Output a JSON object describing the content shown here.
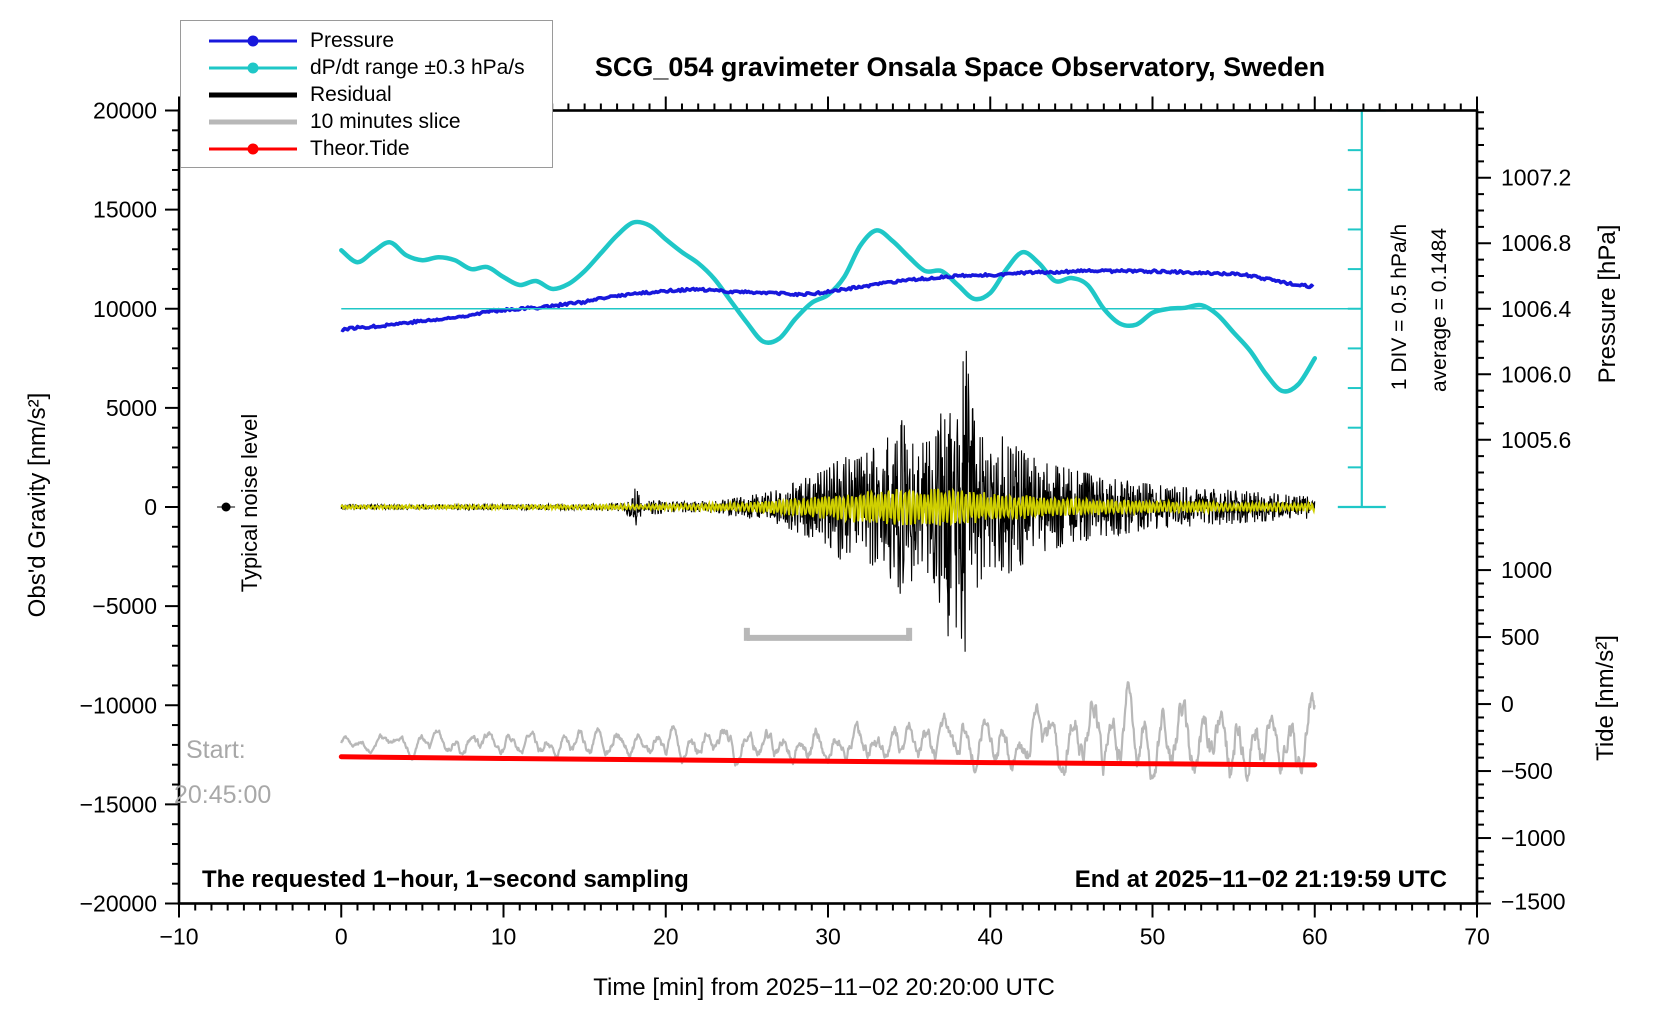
{
  "title": "SCG_054 gravimeter Onsala Space Observatory, Sweden",
  "colors": {
    "pressure": "#1818dc",
    "dpdt": "#1fc7c7",
    "residual": "#000000",
    "slice": "#b8b8b8",
    "tide": "#ff0000",
    "smoothed_residual": "#cfcf00",
    "gray_text": "#a8a8a8",
    "frame": "#000000"
  },
  "legend": {
    "items": [
      {
        "label": "Pressure",
        "color": "#1818dc",
        "marker": "dot",
        "thickness": 3
      },
      {
        "label": "dP/dt range ±0.3 hPa/s",
        "color": "#1fc7c7",
        "marker": "dot",
        "thickness": 3
      },
      {
        "label": "Residual",
        "color": "#000000",
        "marker": "none",
        "thickness": 5
      },
      {
        "label": "10 minutes slice",
        "color": "#b8b8b8",
        "marker": "none",
        "thickness": 5
      },
      {
        "label": "Theor.Tide",
        "color": "#ff0000",
        "marker": "dot",
        "thickness": 3
      }
    ]
  },
  "annotations": {
    "typical_noise": "Typical noise level",
    "start_line1": "Start:",
    "start_line2": "20:45:00",
    "div_label": "1 DIV = 0.5 hPa/h",
    "average_label": "average = 0.1484",
    "bottom_left": "The requested 1−hour, 1−second sampling",
    "bottom_right": "End at 2025−11−02 21:19:59 UTC"
  },
  "chart_data": {
    "type": "line",
    "title": "SCG_054 gravimeter Onsala Space Observatory, Sweden",
    "x_axis": {
      "label": "Time [min] from 2025−11−02 20:20:00 UTC",
      "lim": [
        -10,
        70
      ],
      "major_ticks": [
        -10,
        0,
        10,
        20,
        30,
        40,
        50,
        60,
        70
      ],
      "minor_step": 1
    },
    "left_axis": {
      "label": "Obs'd Gravity [nm/s²]",
      "lim": [
        -20000,
        20000
      ],
      "major_ticks": [
        -20000,
        -15000,
        -10000,
        -5000,
        0,
        5000,
        10000,
        15000,
        20000
      ],
      "minor_step": 1000
    },
    "right_pressure_axis": {
      "label": "Pressure [hPa]",
      "major_ticks": [
        1007.2,
        1006.8,
        1006.4,
        1006.0,
        1005.6
      ],
      "minor_step": 0.1,
      "anchor_value": 1006.4,
      "anchor_gravity": 10000,
      "gravity_per_hpa": 8260
    },
    "right_tide_axis": {
      "label": "Tide [nm/s²]",
      "major_ticks": [
        1000,
        500,
        0,
        -500,
        -1000,
        -1500
      ],
      "minor_step": 100,
      "anchor_value": 0,
      "anchor_gravity": -9940,
      "gravity_per_unit": 6.758
    },
    "overlays": {
      "average_line_gravity": 10000,
      "ruler": {
        "x_min": 62.9,
        "top_gravity": 20000,
        "bottom_gravity": 0,
        "divisions": 10
      },
      "scale_bar": {
        "x_from": 25,
        "x_to": 35,
        "gravity": -6600
      },
      "noise_marker": {
        "x_min": -7.1,
        "gravity": 0
      }
    },
    "series": {
      "pressure_hpa": {
        "x_start": 0,
        "x_step": 1,
        "values": [
          1006.273,
          1006.285,
          1006.291,
          1006.303,
          1006.315,
          1006.325,
          1006.333,
          1006.346,
          1006.364,
          1006.382,
          1006.394,
          1006.4,
          1006.406,
          1006.418,
          1006.43,
          1006.442,
          1006.461,
          1006.479,
          1006.491,
          1006.499,
          1006.509,
          1006.515,
          1006.517,
          1006.511,
          1006.505,
          1006.502,
          1006.499,
          1006.493,
          1006.487,
          1006.491,
          1006.503,
          1006.519,
          1006.533,
          1006.549,
          1006.562,
          1006.574,
          1006.584,
          1006.594,
          1006.6,
          1006.603,
          1006.606,
          1006.612,
          1006.618,
          1006.622,
          1006.625,
          1006.628,
          1006.63,
          1006.63,
          1006.631,
          1006.63,
          1006.629,
          1006.626,
          1006.624,
          1006.62,
          1006.616,
          1006.611,
          1006.603,
          1006.582,
          1006.563,
          1006.545,
          1006.533
        ]
      },
      "dpdt_gravity_units": {
        "x_start": 0,
        "x_step": 1,
        "values": [
          12950,
          12350,
          12900,
          13350,
          12700,
          12450,
          12600,
          12450,
          12000,
          12100,
          11600,
          11200,
          11400,
          11000,
          11250,
          11900,
          12800,
          13700,
          14350,
          14200,
          13500,
          12850,
          12300,
          11500,
          10400,
          9300,
          8350,
          8500,
          9500,
          10300,
          10700,
          11600,
          13200,
          13950,
          13400,
          12600,
          11900,
          11900,
          11200,
          10500,
          10800,
          12000,
          12850,
          12300,
          11400,
          11550,
          11200,
          10000,
          9250,
          9200,
          9800,
          10000,
          10050,
          10180,
          9700,
          8800,
          7900,
          6700,
          5850,
          6200,
          7500
        ]
      },
      "tide_nms2": {
        "points": [
          [
            0,
            -394
          ],
          [
            10,
            -406
          ],
          [
            20,
            -417
          ],
          [
            30,
            -427
          ],
          [
            40,
            -437
          ],
          [
            50,
            -446
          ],
          [
            60,
            -454
          ]
        ]
      },
      "residual_envelope_gravity": [
        [
          0,
          130
        ],
        [
          5,
          130
        ],
        [
          10,
          140
        ],
        [
          16,
          150
        ],
        [
          17.5,
          220
        ],
        [
          18.1,
          1050
        ],
        [
          18.6,
          240
        ],
        [
          19.4,
          380
        ],
        [
          20,
          260
        ],
        [
          22,
          260
        ],
        [
          23,
          300
        ],
        [
          24,
          420
        ],
        [
          25,
          560
        ],
        [
          26,
          700
        ],
        [
          27,
          880
        ],
        [
          28,
          1250
        ],
        [
          29,
          1600
        ],
        [
          30,
          1900
        ],
        [
          30.8,
          2700
        ],
        [
          31.5,
          2300
        ],
        [
          32,
          2500
        ],
        [
          33,
          3100
        ],
        [
          34,
          3700
        ],
        [
          34.6,
          4600
        ],
        [
          35,
          3900
        ],
        [
          35.7,
          3200
        ],
        [
          36.4,
          3400
        ],
        [
          37,
          5200
        ],
        [
          37.5,
          8500
        ],
        [
          38,
          5600
        ],
        [
          38.5,
          8300
        ],
        [
          39,
          4400
        ],
        [
          39.6,
          3400
        ],
        [
          40,
          3000
        ],
        [
          40.8,
          3600
        ],
        [
          41.5,
          3100
        ],
        [
          42,
          2900
        ],
        [
          43,
          2300
        ],
        [
          44,
          2100
        ],
        [
          45,
          1900
        ],
        [
          46,
          1700
        ],
        [
          47,
          1600
        ],
        [
          48,
          1400
        ],
        [
          49,
          1250
        ],
        [
          50,
          1150
        ],
        [
          51,
          1050
        ],
        [
          52,
          1000
        ],
        [
          53,
          950
        ],
        [
          54,
          900
        ],
        [
          55,
          850
        ],
        [
          56,
          780
        ],
        [
          57,
          720
        ],
        [
          58,
          660
        ],
        [
          59,
          620
        ],
        [
          60,
          560
        ]
      ],
      "smoothed_residual_envelope_gravity": [
        [
          0,
          90
        ],
        [
          10,
          100
        ],
        [
          16,
          110
        ],
        [
          20,
          130
        ],
        [
          24,
          200
        ],
        [
          26,
          280
        ],
        [
          28,
          420
        ],
        [
          30,
          560
        ],
        [
          31,
          700
        ],
        [
          32,
          760
        ],
        [
          33,
          820
        ],
        [
          34,
          880
        ],
        [
          35,
          900
        ],
        [
          36,
          840
        ],
        [
          37,
          900
        ],
        [
          38,
          880
        ],
        [
          39,
          760
        ],
        [
          40,
          650
        ],
        [
          41,
          600
        ],
        [
          42,
          560
        ],
        [
          43,
          500
        ],
        [
          44,
          460
        ],
        [
          45,
          430
        ],
        [
          46,
          400
        ],
        [
          47,
          370
        ],
        [
          48,
          340
        ],
        [
          49,
          320
        ],
        [
          50,
          300
        ],
        [
          51,
          285
        ],
        [
          52,
          270
        ],
        [
          53,
          255
        ],
        [
          54,
          240
        ],
        [
          55,
          230
        ],
        [
          56,
          220
        ],
        [
          57,
          210
        ],
        [
          58,
          205
        ],
        [
          59,
          200
        ],
        [
          60,
          195
        ]
      ],
      "slice_center_nms2": [
        [
          0,
          -300
        ],
        [
          3,
          -310
        ],
        [
          6,
          -300
        ],
        [
          10,
          -300
        ],
        [
          14,
          -305
        ],
        [
          18,
          -300
        ],
        [
          22,
          -300
        ],
        [
          26,
          -295
        ],
        [
          30,
          -290
        ],
        [
          34,
          -285
        ],
        [
          38,
          -280
        ],
        [
          42,
          -270
        ],
        [
          45,
          -255
        ],
        [
          47,
          -230
        ],
        [
          48,
          -245
        ],
        [
          50,
          -270
        ],
        [
          52,
          -250
        ],
        [
          54,
          -280
        ],
        [
          56,
          -270
        ],
        [
          58,
          -260
        ],
        [
          59,
          -220
        ],
        [
          60,
          -130
        ]
      ],
      "slice_amplitude_nms2": [
        [
          0,
          55
        ],
        [
          5,
          75
        ],
        [
          10,
          95
        ],
        [
          15,
          105
        ],
        [
          20,
          115
        ],
        [
          25,
          135
        ],
        [
          30,
          145
        ],
        [
          35,
          165
        ],
        [
          40,
          215
        ],
        [
          44,
          260
        ],
        [
          46,
          300
        ],
        [
          48,
          340
        ],
        [
          50,
          250
        ],
        [
          52,
          310
        ],
        [
          54,
          290
        ],
        [
          56,
          310
        ],
        [
          58,
          300
        ],
        [
          59,
          340
        ],
        [
          60,
          240
        ]
      ]
    }
  }
}
